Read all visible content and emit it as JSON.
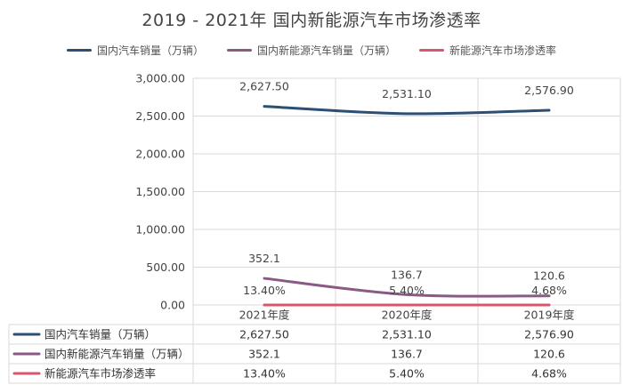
{
  "chart_data": {
    "type": "line",
    "title": "2019 - 2021年 国内新能源汽车市场渗透率",
    "categories": [
      "2021年度",
      "2020年度",
      "2019年度"
    ],
    "series": [
      {
        "name": "国内汽车销量（万辆）",
        "values": [
          2627.5,
          2531.1,
          2576.9
        ],
        "labels": [
          "2,627.50",
          "2,531.10",
          "2,576.90"
        ],
        "color": "#2c4f73"
      },
      {
        "name": "国内新能源汽车销量（万辆）",
        "values": [
          352.1,
          136.7,
          120.6
        ],
        "labels": [
          "352.1",
          "136.7",
          "120.6"
        ],
        "color": "#8a5a85"
      },
      {
        "name": "新能源汽车市场渗透率",
        "values": [
          0.134,
          0.054,
          0.0468
        ],
        "labels": [
          "13.40%",
          "5.40%",
          "4.68%"
        ],
        "color": "#d8566e"
      }
    ],
    "ylim": [
      0,
      3000
    ],
    "yticks": [
      "0.00",
      "500.00",
      "1,000.00",
      "1,500.00",
      "2,000.00",
      "2,500.00",
      "3,000.00"
    ],
    "ytick_values": [
      0,
      500,
      1000,
      1500,
      2000,
      2500,
      3000
    ],
    "grid": true,
    "legend_position": "top",
    "data_table": true
  }
}
